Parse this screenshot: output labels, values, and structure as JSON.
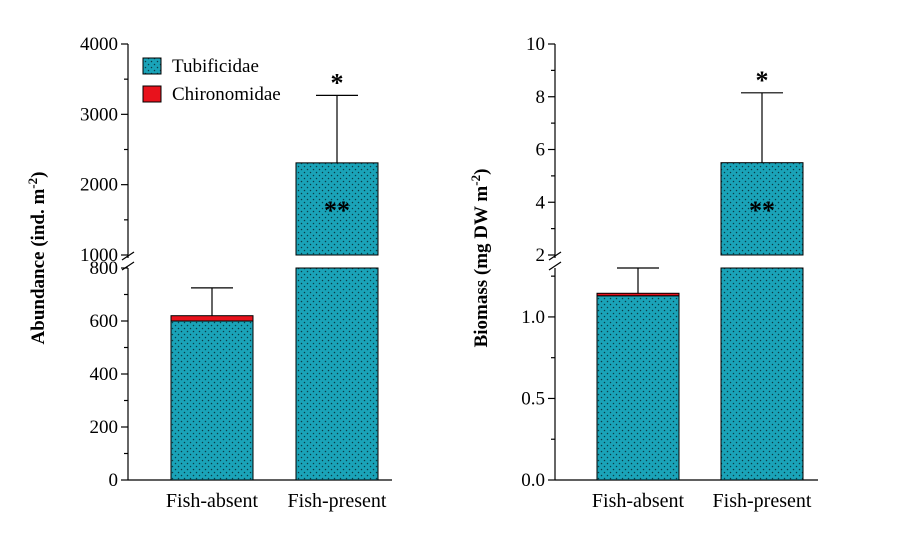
{
  "colors": {
    "tubificidae": "#1aa3b8",
    "chironomidae": "#e8121c",
    "dots": "#0b3d47"
  },
  "chart_data": [
    {
      "type": "bar",
      "stacked": true,
      "broken_axis": true,
      "categories": [
        "Fish-absent",
        "Fish-present"
      ],
      "ylabel_main": "Abundance (ind. m",
      "ylabel_sup": "-2",
      "ylabel_close": ")",
      "lower_range": [
        0,
        800
      ],
      "upper_range": [
        1000,
        4000
      ],
      "lower_ticks": [
        "0",
        "200",
        "400",
        "600",
        "800"
      ],
      "upper_ticks": [
        "1000",
        "2000",
        "3000",
        "4000"
      ],
      "series": [
        {
          "name": "Tubificidae",
          "values": [
            600,
            2310
          ]
        },
        {
          "name": "Chironomidae",
          "values": [
            20,
            0
          ]
        }
      ],
      "error_upper": [
        725,
        3270
      ],
      "annotations": [
        {
          "category": "Fish-present",
          "text": "*",
          "position": "above-error-bar"
        },
        {
          "category": "Fish-present",
          "text": "**",
          "position": "inside-bar"
        }
      ],
      "legend": {
        "placement": "top-left"
      }
    },
    {
      "type": "bar",
      "stacked": true,
      "broken_axis": true,
      "categories": [
        "Fish-absent",
        "Fish-present"
      ],
      "ylabel_main": "Biomass (mg DW m",
      "ylabel_sup": "-2",
      "ylabel_close": ")",
      "lower_range": [
        0,
        1.3
      ],
      "upper_range": [
        2,
        10
      ],
      "lower_ticks": [
        "0.0",
        "0.5",
        "1.0"
      ],
      "upper_ticks": [
        "2",
        "4",
        "6",
        "8",
        "10"
      ],
      "series": [
        {
          "name": "Tubificidae",
          "values": [
            1.13,
            5.5
          ]
        },
        {
          "name": "Chironomidae",
          "values": [
            0.015,
            0
          ]
        }
      ],
      "error_upper": [
        1.3,
        8.15
      ],
      "annotations": [
        {
          "category": "Fish-present",
          "text": "*",
          "position": "above-error-bar"
        },
        {
          "category": "Fish-present",
          "text": "**",
          "position": "inside-bar"
        }
      ]
    }
  ]
}
